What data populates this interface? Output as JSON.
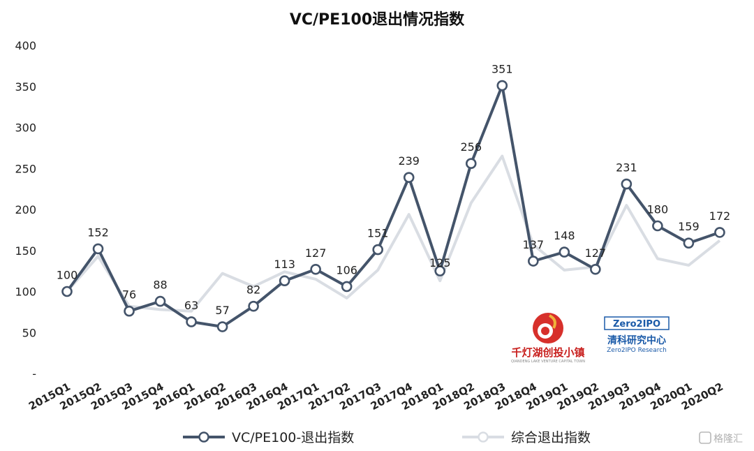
{
  "chart_data": {
    "type": "line",
    "title": "VC/PE100退出情况指数",
    "categories": [
      "2015Q1",
      "2015Q2",
      "2015Q3",
      "2015Q4",
      "2016Q1",
      "2016Q2",
      "2016Q3",
      "2016Q4",
      "2017Q1",
      "2017Q2",
      "2017Q3",
      "2017Q4",
      "2018Q1",
      "2018Q2",
      "2018Q3",
      "2018Q4",
      "2019Q1",
      "2019Q2",
      "2019Q3",
      "2019Q4",
      "2020Q1",
      "2020Q2"
    ],
    "y_tick_labels": [
      "-",
      "50",
      "100",
      "150",
      "200",
      "250",
      "300",
      "350",
      "400"
    ],
    "ylim": [
      0,
      400
    ],
    "grid": false,
    "legend_position": "bottom",
    "series": [
      {
        "name": "VC/PE100-退出指数",
        "color": "#44546a",
        "values": [
          100,
          152,
          76,
          88,
          63,
          57,
          82,
          113,
          127,
          106,
          151,
          239,
          125,
          256,
          351,
          137,
          148,
          127,
          231,
          180,
          159,
          172
        ],
        "labels": [
          "100",
          "152",
          "76",
          "88",
          "63",
          "57",
          "82",
          "113",
          "127",
          "106",
          "151",
          "239",
          "125",
          "256",
          "351",
          "137",
          "148",
          "127",
          "231",
          "180",
          "159",
          "172"
        ]
      },
      {
        "name": "综合退出指数",
        "color": "#d9dde3",
        "values": [
          100,
          143,
          82,
          78,
          76,
          122,
          106,
          124,
          115,
          92,
          126,
          194,
          113,
          208,
          265,
          157,
          126,
          130,
          205,
          140,
          132,
          162
        ]
      }
    ]
  },
  "logos": {
    "left": {
      "name": "千灯湖创投小镇",
      "subtitle": "QIANDENG LAKE VENTURE CAPITAL TOWN"
    },
    "right": {
      "name": "清科研究中心",
      "brand": "Zero2IPO",
      "subtitle": "Zero2IPO Research"
    }
  },
  "watermark": {
    "text": "格隆汇"
  }
}
